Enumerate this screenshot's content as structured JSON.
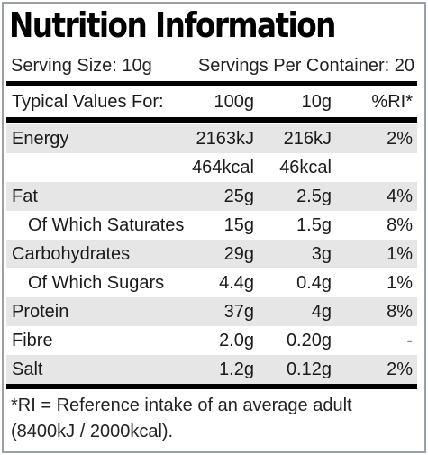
{
  "title": "Nutrition Information",
  "serving": {
    "size": "Serving Size: 10g",
    "per_container": "Servings Per Container: 20"
  },
  "table": {
    "header": {
      "label": "Typical Values For:",
      "col_100": "100g",
      "col_10": "10g",
      "col_ri": "%RI*"
    },
    "rows": [
      {
        "label": "Energy",
        "v100": "2163kJ",
        "v10": "216kJ",
        "ri": "2%"
      },
      {
        "label": "",
        "v100": "464kcal",
        "v10": "46kcal",
        "ri": ""
      },
      {
        "label": "Fat",
        "v100": "25g",
        "v10": "2.5g",
        "ri": "4%"
      },
      {
        "label": "Of Which Saturates",
        "v100": "15g",
        "v10": "1.5g",
        "ri": "8%"
      },
      {
        "label": "Carbohydrates",
        "v100": "29g",
        "v10": "3g",
        "ri": "1%"
      },
      {
        "label": "Of Which Sugars",
        "v100": "4.4g",
        "v10": "0.4g",
        "ri": "1%"
      },
      {
        "label": "Protein",
        "v100": "37g",
        "v10": "4g",
        "ri": "8%"
      },
      {
        "label": "Fibre",
        "v100": "2.0g",
        "v10": "0.20g",
        "ri": "-"
      },
      {
        "label": "Salt",
        "v100": "1.2g",
        "v10": "0.12g",
        "ri": "2%"
      }
    ]
  },
  "footnote": {
    "line1": "*RI = Reference intake of an average adult",
    "line2": "(8400kJ / 2000kcal)."
  },
  "colors": {
    "border": "#9aa0a6",
    "shade": "#e6e6e6",
    "rule": "#000000"
  }
}
